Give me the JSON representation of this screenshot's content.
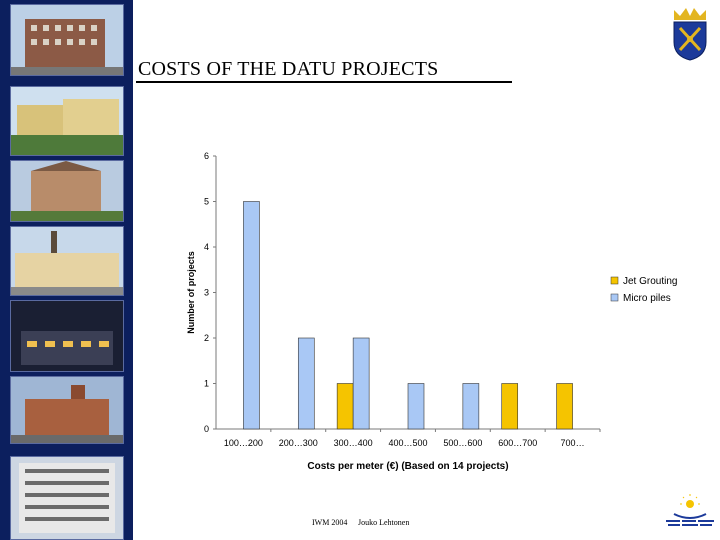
{
  "slide": {
    "title": "COSTS OF THE DATU PROJECTS",
    "footer_left": "IWM 2004",
    "footer_right": "Jouko Lehtonen"
  },
  "colors": {
    "jet_grouting": "#f5c400",
    "micro_piles": "#a9c8f5",
    "left_strip": "#0c1f5e"
  },
  "chart_data": {
    "type": "bar",
    "categories": [
      "100…200",
      "200…300",
      "300…400",
      "400…500",
      "500…600",
      "600…700",
      "700…"
    ],
    "series": [
      {
        "name": "Jet Grouting",
        "values": [
          0,
          0,
          1,
          0,
          0,
          1,
          1
        ]
      },
      {
        "name": "Micro piles",
        "values": [
          5,
          2,
          2,
          1,
          1,
          0,
          0
        ]
      }
    ],
    "xlabel": "Costs per meter (€) (Based on 14 projects)",
    "ylabel": "Number of projects",
    "ylim": [
      0,
      6
    ],
    "yticks": [
      0,
      1,
      2,
      3,
      4,
      5,
      6
    ],
    "grid": false,
    "legend": "right"
  }
}
